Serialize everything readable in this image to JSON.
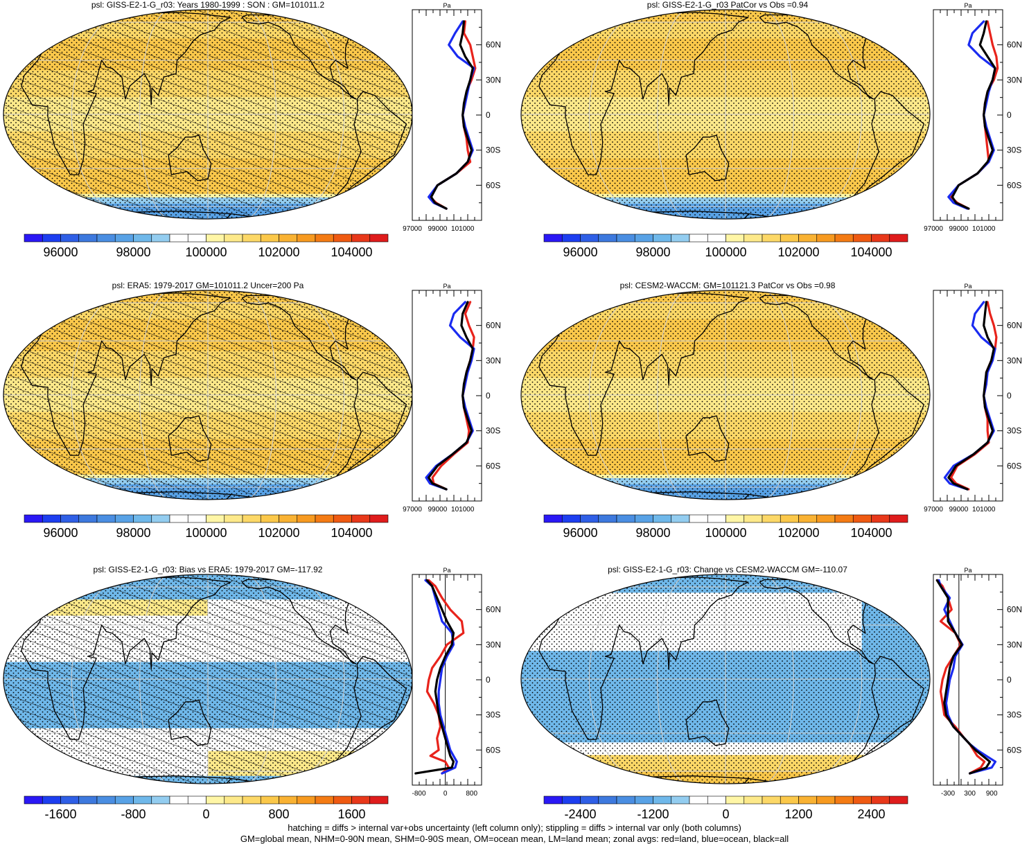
{
  "colors": {
    "land": "#e8231b",
    "ocean": "#1a2bf0",
    "all": "#000000",
    "palette": [
      "#2a18f5",
      "#1d3ef0",
      "#2f5fe6",
      "#3d79de",
      "#4a8ee2",
      "#58a2e6",
      "#6fb8ea",
      "#93cdf0",
      "#ffffff",
      "#ffffff",
      "#fff6a6",
      "#fde98a",
      "#fcd867",
      "#fbc84a",
      "#f9b233",
      "#f79a20",
      "#f47b14",
      "#ef5a12",
      "#e8381a",
      "#df1c1c"
    ]
  },
  "footer": {
    "line1": "hatching = diffs > internal var+obs uncertainty (left column only); stippling = diffs > internal var only (both columns)",
    "line2": "GM=global mean, NHM=0-90N mean, SHM=0-90S mean, OM=ocean mean, LM=land mean; zonal avgs: red=land, blue=ocean, black=all"
  },
  "chart_data": [
    {
      "type": "heatmap",
      "title": "psl: GISS-E2-1-G_r03: Years 1980-1999 : SON : GM=101011.2",
      "colorbar": {
        "ticks": [
          "96000",
          "98000",
          "100000",
          "102000",
          "104000"
        ]
      },
      "zonal_profile": {
        "unit": "Pa",
        "lat_ticks": [
          "60N",
          "30N",
          "0",
          "30S",
          "60S"
        ],
        "x_ticks": [
          "97000",
          "99000",
          "101000"
        ],
        "xlim": [
          97000,
          102500
        ],
        "lat": [
          80,
          70,
          60,
          50,
          40,
          30,
          20,
          10,
          0,
          -10,
          -20,
          -30,
          -40,
          -50,
          -60,
          -70,
          -75,
          -80
        ],
        "series": [
          {
            "name": "land",
            "values": [
              101200,
              101100,
              101600,
              101800,
              102000,
              101700,
              101300,
              101200,
              101000,
              101100,
              101300,
              101400,
              101600,
              100500,
              99000,
              98400,
              98900,
              99700
            ]
          },
          {
            "name": "ocean",
            "values": [
              101000,
              100400,
              99900,
              100600,
              101900,
              101600,
              101400,
              101200,
              101000,
              101200,
              101500,
              101800,
              101400,
              100500,
              99000,
              98300,
              98700,
              99700
            ]
          },
          {
            "name": "all",
            "values": [
              101100,
              101000,
              100800,
              101200,
              101800,
              101600,
              101300,
              101100,
              101000,
              101100,
              101400,
              101700,
              101400,
              100500,
              99000,
              98500,
              98800,
              99700
            ]
          }
        ]
      }
    },
    {
      "type": "heatmap",
      "title": "psl: GISS-E2-1-G_r03 PatCor vs Obs =0.94",
      "colorbar": {
        "ticks": [
          "96000",
          "98000",
          "100000",
          "102000",
          "104000"
        ]
      },
      "zonal_profile": {
        "unit": "Pa",
        "lat_ticks": [
          "60N",
          "30N",
          "0",
          "30S",
          "60S"
        ],
        "x_ticks": [
          "97000",
          "99000",
          "101000"
        ],
        "xlim": [
          97000,
          102500
        ],
        "lat": [
          80,
          70,
          60,
          50,
          40,
          30,
          20,
          10,
          0,
          -10,
          -20,
          -30,
          -40,
          -50,
          -60,
          -70,
          -75,
          -80
        ],
        "series": [
          {
            "name": "land",
            "values": [
              101300,
              101500,
              101700,
              102000,
              102100,
              101800,
              101300,
              101100,
              101000,
              101100,
              101200,
              101300,
              101400,
              100500,
              99000,
              98400,
              98900,
              99800
            ]
          },
          {
            "name": "ocean",
            "values": [
              101000,
              100100,
              99800,
              100700,
              101900,
              101700,
              101400,
              101200,
              101000,
              101200,
              101500,
              101800,
              101400,
              100500,
              99000,
              98200,
              98600,
              99700
            ]
          },
          {
            "name": "all",
            "values": [
              101200,
              101000,
              100700,
              101300,
              101900,
              101700,
              101300,
              101100,
              101000,
              101100,
              101400,
              101700,
              101300,
              100500,
              99000,
              98500,
              98800,
              99800
            ]
          }
        ]
      }
    },
    {
      "type": "heatmap",
      "title": "psl: ERA5: 1979-2017 GM=101011.2 Uncer=200 Pa",
      "colorbar": {
        "ticks": [
          "96000",
          "98000",
          "100000",
          "102000",
          "104000"
        ]
      },
      "zonal_profile": {
        "unit": "Pa",
        "lat_ticks": [
          "60N",
          "30N",
          "0",
          "30S",
          "60S"
        ],
        "x_ticks": [
          "97000",
          "99000",
          "101000"
        ],
        "xlim": [
          97000,
          102500
        ],
        "lat": [
          80,
          70,
          60,
          50,
          40,
          30,
          20,
          10,
          0,
          -10,
          -20,
          -30,
          -40,
          -50,
          -60,
          -70,
          -75,
          -80
        ],
        "series": [
          {
            "name": "land",
            "values": [
              101600,
              101200,
              101500,
              101900,
              101800,
              101600,
              101300,
              101200,
              101000,
              101100,
              101300,
              101500,
              101400,
              100300,
              99300,
              98600,
              98700,
              99700
            ]
          },
          {
            "name": "ocean",
            "values": [
              101200,
              100300,
              100000,
              100800,
              101900,
              101700,
              101400,
              101200,
              101000,
              101200,
              101500,
              101800,
              101300,
              100200,
              98900,
              98100,
              98400,
              99700
            ]
          },
          {
            "name": "all",
            "values": [
              101400,
              101000,
              100900,
              101300,
              101800,
              101600,
              101300,
              101100,
              101000,
              101100,
              101400,
              101700,
              101300,
              100200,
              99000,
              98300,
              98600,
              99700
            ]
          }
        ]
      }
    },
    {
      "type": "heatmap",
      "title": "psl: CESM2-WACCM: GM=101121.3 PatCor vs Obs =0.98",
      "colorbar": {
        "ticks": [
          "96000",
          "98000",
          "100000",
          "102000",
          "104000"
        ]
      },
      "zonal_profile": {
        "unit": "Pa",
        "lat_ticks": [
          "60N",
          "30N",
          "0",
          "30S",
          "60S"
        ],
        "x_ticks": [
          "97000",
          "99000",
          "101000"
        ],
        "xlim": [
          97000,
          102500
        ],
        "lat": [
          80,
          70,
          60,
          50,
          40,
          30,
          20,
          10,
          0,
          -10,
          -20,
          -30,
          -40,
          -50,
          -60,
          -70,
          -75,
          -80
        ],
        "series": [
          {
            "name": "land",
            "values": [
              101300,
              101500,
              101800,
              102000,
              101900,
              101600,
              101200,
              101200,
              101000,
              101100,
              101300,
              101300,
              101400,
              100300,
              98900,
              98400,
              98800,
              99800
            ]
          },
          {
            "name": "ocean",
            "values": [
              101000,
              100300,
              100100,
              100800,
              101900,
              101700,
              101300,
              101200,
              101000,
              101200,
              101500,
              101800,
              101300,
              100200,
              98600,
              97900,
              98300,
              99700
            ]
          },
          {
            "name": "all",
            "values": [
              101200,
              101100,
              101000,
              101300,
              101800,
              101600,
              101200,
              101100,
              101000,
              101100,
              101400,
              101700,
              101300,
              100200,
              98800,
              98200,
              98600,
              99700
            ]
          }
        ]
      }
    },
    {
      "type": "heatmap",
      "title": "psl: GISS-E2-1-G_r03: Bias vs ERA5: 1979-2017  GM=-117.92",
      "colorbar": {
        "ticks": [
          "-1600",
          "-800",
          "0",
          "800",
          "1600"
        ]
      },
      "zonal_profile": {
        "unit": "Pa",
        "lat_ticks": [
          "60N",
          "30N",
          "0",
          "30S",
          "60S"
        ],
        "x_ticks": [
          "-800",
          "0",
          "800"
        ],
        "xlim": [
          -1000,
          1100
        ],
        "zero_line": 0,
        "lat": [
          85,
          80,
          70,
          60,
          50,
          40,
          30,
          20,
          10,
          0,
          -10,
          -20,
          -30,
          -40,
          -50,
          -60,
          -65,
          -70,
          -75,
          -80
        ],
        "series": [
          {
            "name": "land",
            "values": [
              -500,
              -300,
              -100,
              150,
              500,
              550,
              50,
              -150,
              -400,
              -500,
              -550,
              -350,
              -200,
              -150,
              -250,
              -200,
              -450,
              0,
              100,
              -100
            ]
          },
          {
            "name": "ocean",
            "values": [
              -600,
              -400,
              -300,
              -200,
              -100,
              200,
              250,
              50,
              -100,
              -150,
              -200,
              -200,
              -150,
              -50,
              50,
              150,
              250,
              350,
              300,
              -100
            ]
          },
          {
            "name": "all",
            "values": [
              -550,
              -400,
              -250,
              -100,
              50,
              250,
              200,
              0,
              -150,
              -250,
              -300,
              -250,
              -200,
              -100,
              0,
              100,
              150,
              250,
              200,
              -900
            ]
          }
        ]
      }
    },
    {
      "type": "heatmap",
      "title": "psl: GISS-E2-1-G_r03: Change vs CESM2-WACCM GM=-110.07",
      "colorbar": {
        "ticks": [
          "-2400",
          "-1200",
          "0",
          "1200",
          "2400"
        ]
      },
      "zonal_profile": {
        "unit": "Pa",
        "lat_ticks": [
          "60N",
          "30N",
          "0",
          "30S",
          "60S"
        ],
        "x_ticks": [
          "-300",
          "300",
          "900"
        ],
        "xlim": [
          -700,
          1200
        ],
        "zero_line": 0,
        "lat": [
          85,
          80,
          70,
          60,
          50,
          40,
          30,
          20,
          10,
          0,
          -10,
          -20,
          -30,
          -40,
          -50,
          -55,
          -60,
          -65,
          -70,
          -75,
          -80
        ],
        "series": [
          {
            "name": "land",
            "values": [
              -600,
              -450,
              -300,
              -200,
              -500,
              -100,
              50,
              -150,
              -350,
              -450,
              -500,
              -450,
              -400,
              -100,
              150,
              300,
              400,
              500,
              700,
              600,
              300
            ]
          },
          {
            "name": "ocean",
            "values": [
              -550,
              -500,
              -250,
              -400,
              -250,
              -100,
              100,
              -100,
              -150,
              -250,
              -300,
              -350,
              -300,
              -150,
              150,
              300,
              500,
              750,
              1000,
              900,
              300
            ]
          },
          {
            "name": "all",
            "values": [
              -600,
              -500,
              -300,
              -300,
              -300,
              -100,
              80,
              -150,
              -250,
              -300,
              -350,
              -400,
              -350,
              -150,
              150,
              300,
              450,
              650,
              850,
              750,
              300
            ]
          }
        ]
      }
    }
  ]
}
